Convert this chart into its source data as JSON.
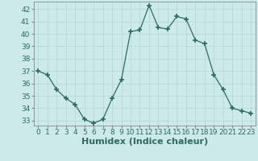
{
  "x": [
    0,
    1,
    2,
    3,
    4,
    5,
    6,
    7,
    8,
    9,
    10,
    11,
    12,
    13,
    14,
    15,
    16,
    17,
    18,
    19,
    20,
    21,
    22,
    23
  ],
  "y": [
    37.0,
    36.7,
    35.5,
    34.8,
    34.3,
    33.1,
    32.8,
    33.1,
    34.8,
    36.3,
    40.2,
    40.3,
    42.3,
    40.5,
    40.4,
    41.4,
    41.2,
    39.5,
    39.2,
    36.7,
    35.5,
    34.0,
    33.8,
    33.6
  ],
  "line_color": "#2e6b5e",
  "marker": "+",
  "marker_size": 5,
  "bg_color": "#cceaea",
  "grid_color": "#b8d8d8",
  "ylim_min": 32.6,
  "ylim_max": 42.6,
  "yticks": [
    33,
    34,
    35,
    36,
    37,
    38,
    39,
    40,
    41,
    42
  ],
  "xticks": [
    0,
    1,
    2,
    3,
    4,
    5,
    6,
    7,
    8,
    9,
    10,
    11,
    12,
    13,
    14,
    15,
    16,
    17,
    18,
    19,
    20,
    21,
    22,
    23
  ],
  "xlabel": "Humidex (Indice chaleur)",
  "xlabel_fontsize": 8,
  "tick_fontsize": 6.5,
  "spine_color": "#888888",
  "text_color": "#2e6b5e"
}
